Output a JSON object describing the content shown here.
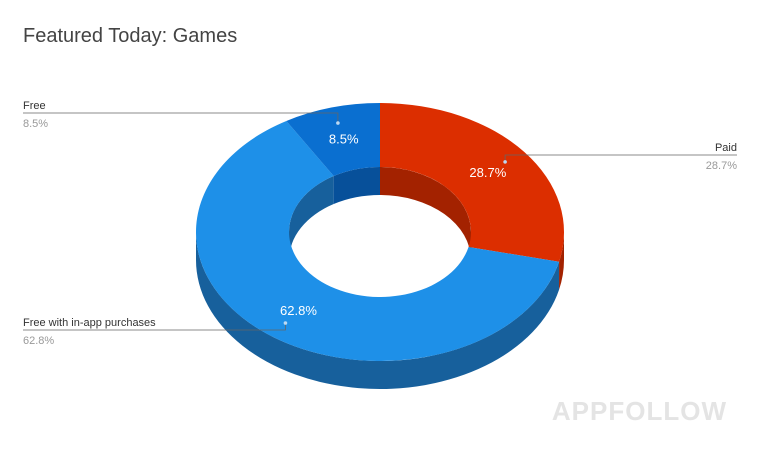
{
  "chart_data": {
    "type": "pie",
    "title": "Featured Today: Games",
    "hole": true,
    "slices": [
      {
        "name": "Paid",
        "value": 28.7,
        "label": "28.7%",
        "color": "#dc2e00",
        "dark": "#a32200"
      },
      {
        "name": "Free with in-app purchases",
        "value": 62.8,
        "label": "62.8%",
        "color": "#1e90e8",
        "dark": "#17609c"
      },
      {
        "name": "Free",
        "value": 8.5,
        "label": "8.5%",
        "color": "#0a6fd0",
        "dark": "#07509a"
      }
    ],
    "legend_placement": "callouts-left-right"
  },
  "watermark": "APPFOLLOW"
}
